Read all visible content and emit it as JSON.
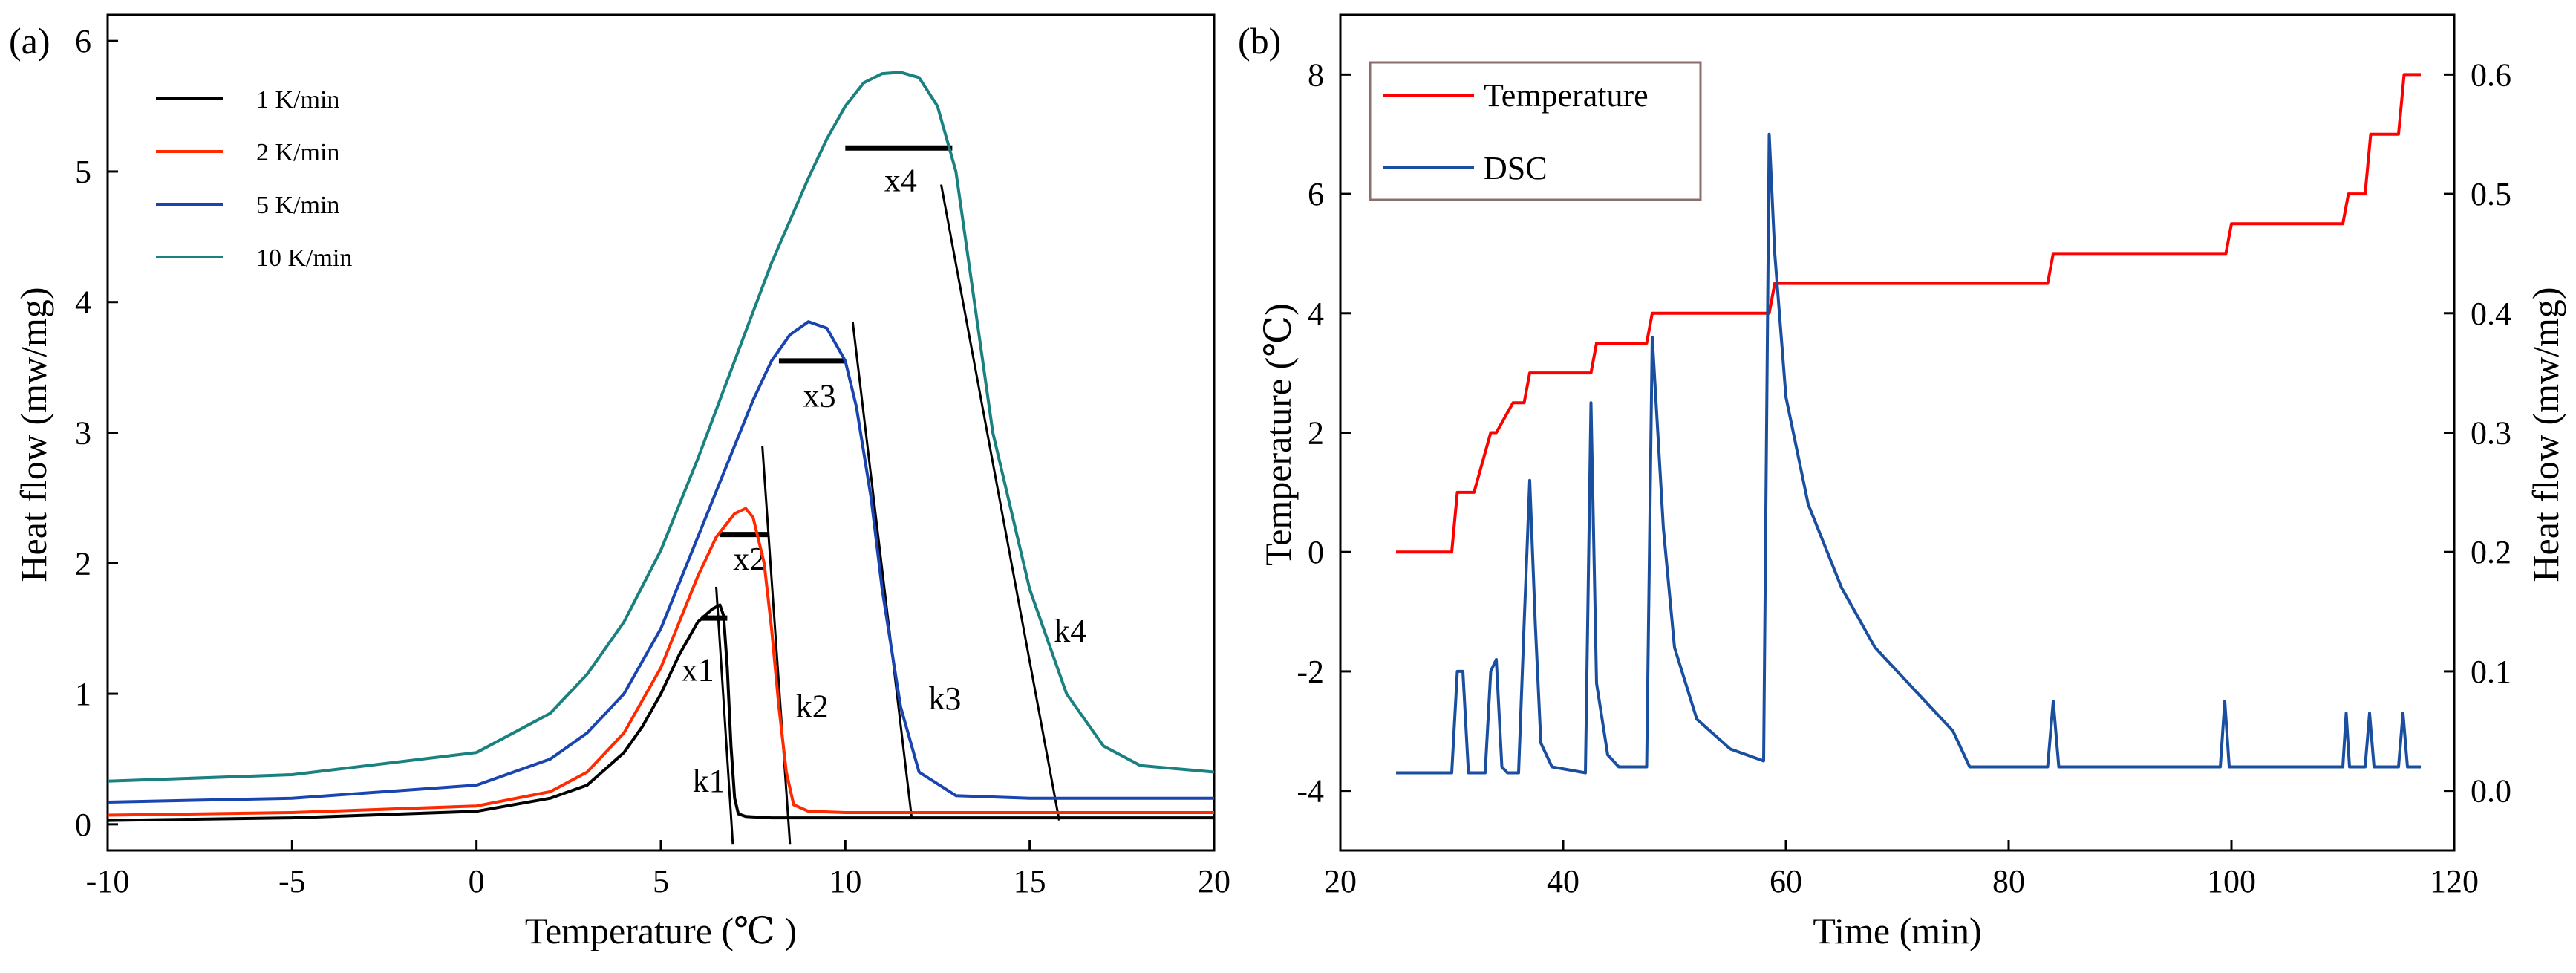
{
  "chart_data": [
    {
      "panel": "(a)",
      "type": "line",
      "xlabel": "Temperature (℃ )",
      "ylabel": "Heat flow (mw/mg)",
      "xlim": [
        -10,
        20
      ],
      "ylim": [
        -0.2,
        6.2
      ],
      "xticks": [
        -10,
        -5,
        0,
        5,
        10,
        15,
        20
      ],
      "yticks": [
        0,
        1,
        2,
        3,
        4,
        5,
        6
      ],
      "grid": false,
      "legend": "top-left",
      "series": [
        {
          "name": "1 K/min",
          "color": "#000000",
          "x": [
            -10,
            -5,
            0,
            2,
            3,
            4,
            4.5,
            5,
            5.5,
            6,
            6.4,
            6.6,
            6.7,
            6.8,
            6.9,
            7.0,
            7.1,
            7.3,
            8,
            10,
            15,
            20
          ],
          "y": [
            0.03,
            0.05,
            0.1,
            0.2,
            0.3,
            0.55,
            0.75,
            1.0,
            1.3,
            1.55,
            1.65,
            1.68,
            1.6,
            1.2,
            0.6,
            0.2,
            0.08,
            0.06,
            0.05,
            0.05,
            0.05,
            0.05
          ]
        },
        {
          "name": "2 K/min",
          "color": "#ff2a00",
          "x": [
            -10,
            -5,
            0,
            2,
            3,
            4,
            5,
            5.5,
            6,
            6.5,
            7,
            7.3,
            7.5,
            7.8,
            8.0,
            8.2,
            8.4,
            8.6,
            9,
            10,
            15,
            20
          ],
          "y": [
            0.07,
            0.09,
            0.14,
            0.25,
            0.4,
            0.7,
            1.2,
            1.55,
            1.9,
            2.2,
            2.38,
            2.42,
            2.35,
            2.0,
            1.5,
            0.9,
            0.4,
            0.15,
            0.1,
            0.09,
            0.09,
            0.09
          ]
        },
        {
          "name": "5 K/min",
          "color": "#1a44b0",
          "x": [
            -10,
            -5,
            0,
            2,
            3,
            4,
            5,
            6,
            7,
            7.5,
            8,
            8.5,
            9,
            9.5,
            10,
            10.3,
            10.7,
            11,
            11.5,
            12,
            13,
            15,
            20
          ],
          "y": [
            0.17,
            0.2,
            0.3,
            0.5,
            0.7,
            1.0,
            1.5,
            2.2,
            2.9,
            3.25,
            3.55,
            3.75,
            3.85,
            3.8,
            3.55,
            3.2,
            2.5,
            1.8,
            0.9,
            0.4,
            0.22,
            0.2,
            0.2
          ]
        },
        {
          "name": "10 K/min",
          "color": "#1a8080",
          "x": [
            -10,
            -5,
            0,
            2,
            3,
            4,
            5,
            6,
            7,
            8,
            9,
            9.5,
            10,
            10.5,
            11,
            11.5,
            12,
            12.5,
            13,
            13.5,
            14,
            15,
            16,
            17,
            18,
            20
          ],
          "y": [
            0.33,
            0.38,
            0.55,
            0.85,
            1.15,
            1.55,
            2.1,
            2.8,
            3.55,
            4.3,
            4.95,
            5.25,
            5.5,
            5.68,
            5.75,
            5.76,
            5.72,
            5.5,
            5.0,
            4.0,
            3.0,
            1.8,
            1.0,
            0.6,
            0.45,
            0.4
          ]
        }
      ],
      "annotations": [
        {
          "text": "x1",
          "x": 6.0,
          "y": 1.1
        },
        {
          "text": "x2",
          "x": 7.4,
          "y": 1.95
        },
        {
          "text": "x3",
          "x": 9.3,
          "y": 3.2
        },
        {
          "text": "x4",
          "x": 11.5,
          "y": 4.85
        },
        {
          "text": "k1",
          "x": 6.3,
          "y": 0.25
        },
        {
          "text": "k2",
          "x": 9.1,
          "y": 0.82
        },
        {
          "text": "k3",
          "x": 12.7,
          "y": 0.88
        },
        {
          "text": "k4",
          "x": 16.1,
          "y": 1.4
        }
      ],
      "plateaus": [
        {
          "x1": 6.1,
          "x2": 6.8,
          "y": 1.58
        },
        {
          "x1": 6.6,
          "x2": 7.9,
          "y": 2.22
        },
        {
          "x1": 8.2,
          "x2": 10.0,
          "y": 3.55
        },
        {
          "x1": 10.0,
          "x2": 12.9,
          "y": 5.18
        }
      ],
      "tangents": [
        {
          "x1": 6.5,
          "y1": 1.82,
          "x2": 6.95,
          "y2": -0.15
        },
        {
          "x1": 7.75,
          "y1": 2.9,
          "x2": 8.5,
          "y2": -0.15
        },
        {
          "x1": 10.2,
          "y1": 3.85,
          "x2": 11.8,
          "y2": 0.05
        },
        {
          "x1": 12.6,
          "y1": 4.9,
          "x2": 15.8,
          "y2": 0.03
        }
      ]
    },
    {
      "panel": "(b)",
      "type": "line",
      "xlabel": "Time (min)",
      "ylabel": "Temperature (℃)",
      "ylabel_right": "Heat flow (mw/mg)",
      "xlim": [
        20,
        120
      ],
      "ylim": [
        -5,
        9
      ],
      "ylim_right": [
        -0.05,
        0.65
      ],
      "xticks": [
        20,
        40,
        60,
        80,
        100,
        120
      ],
      "yticks": [
        -4,
        -2,
        0,
        2,
        4,
        6,
        8
      ],
      "yticks_right": [
        0.0,
        0.1,
        0.2,
        0.3,
        0.4,
        0.5,
        0.6
      ],
      "grid": false,
      "legend": "top-left",
      "series": [
        {
          "name": "Temperature",
          "color": "#ff0000",
          "axis": "left",
          "x": [
            25,
            30,
            30.5,
            32,
            33.5,
            34,
            35.5,
            36.5,
            37,
            42.5,
            43,
            47.5,
            48,
            58.5,
            59,
            83.5,
            84,
            99.5,
            100,
            110,
            110.5,
            112,
            112.5,
            115,
            115.5,
            117
          ],
          "y": [
            0,
            0,
            1,
            1,
            2,
            2,
            2.5,
            2.5,
            3,
            3,
            3.5,
            3.5,
            4,
            4,
            4.5,
            4.5,
            5,
            5,
            5.5,
            5.5,
            6,
            6,
            7,
            7,
            8,
            8
          ]
        },
        {
          "name": "DSC",
          "color": "#1a4fa0",
          "axis": "right",
          "x": [
            25,
            30,
            30.5,
            31,
            31.5,
            32,
            33,
            33.5,
            34,
            34.5,
            35,
            36,
            36.5,
            37,
            37.5,
            38,
            39,
            42,
            42.5,
            43,
            43.5,
            44,
            45,
            47.5,
            48,
            48.5,
            49,
            50,
            52,
            55,
            58,
            58.5,
            59,
            60,
            62,
            65,
            68,
            72,
            75,
            76.5,
            78,
            83.5,
            84,
            84.5,
            99,
            99.4,
            99.8,
            110,
            110.3,
            110.6,
            112,
            112.4,
            112.8,
            115,
            115.4,
            115.8,
            117
          ],
          "y": [
            0.015,
            0.015,
            0.1,
            0.1,
            0.015,
            0.015,
            0.015,
            0.1,
            0.11,
            0.02,
            0.015,
            0.015,
            0.14,
            0.26,
            0.14,
            0.04,
            0.02,
            0.015,
            0.325,
            0.09,
            0.06,
            0.03,
            0.02,
            0.02,
            0.38,
            0.3,
            0.22,
            0.12,
            0.06,
            0.035,
            0.025,
            0.55,
            0.45,
            0.33,
            0.24,
            0.17,
            0.12,
            0.08,
            0.05,
            0.02,
            0.02,
            0.02,
            0.075,
            0.02,
            0.02,
            0.075,
            0.02,
            0.02,
            0.065,
            0.02,
            0.02,
            0.065,
            0.02,
            0.02,
            0.065,
            0.02,
            0.02
          ]
        }
      ]
    }
  ]
}
